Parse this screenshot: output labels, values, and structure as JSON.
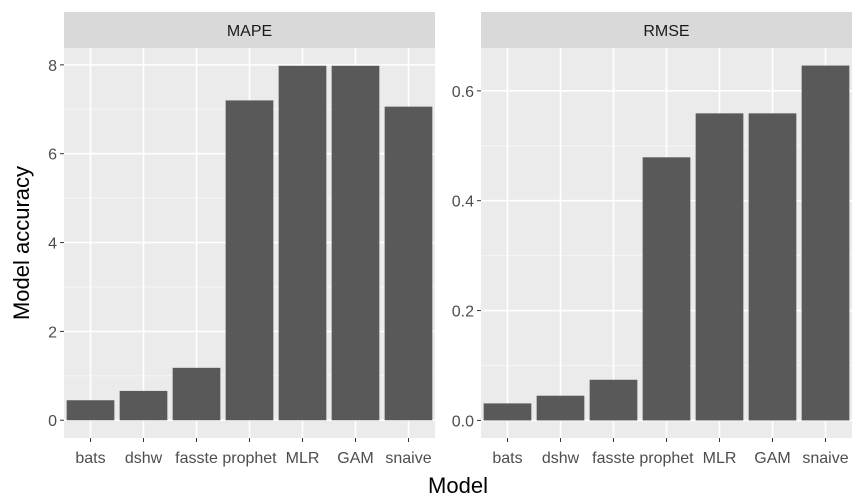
{
  "chart_data": {
    "type": "bar",
    "xlabel": "Model",
    "ylabel": "Model accuracy",
    "categories": [
      "bats",
      "dshw",
      "fasste",
      "prophet",
      "MLR",
      "GAM",
      "snaive"
    ],
    "grid": true,
    "legend": "none",
    "colors": {
      "bar": "#595959",
      "panel": "#ebebeb",
      "strip": "#d9d9d9",
      "grid_major": "#ffffff",
      "grid_minor": "#f5f5f5"
    },
    "panels": [
      {
        "title": "MAPE",
        "values": [
          0.45,
          0.66,
          1.18,
          7.2,
          7.98,
          7.98,
          7.06
        ],
        "ylim": [
          -0.4,
          8.38
        ],
        "yticks": [
          0,
          2,
          4,
          6,
          8
        ],
        "ytick_labels": [
          "0",
          "2",
          "4",
          "6",
          "8"
        ]
      },
      {
        "title": "RMSE",
        "values": [
          0.031,
          0.045,
          0.074,
          0.479,
          0.559,
          0.559,
          0.646
        ],
        "ylim": [
          -0.032,
          0.678
        ],
        "yticks": [
          0.0,
          0.2,
          0.4,
          0.6
        ],
        "ytick_labels": [
          "0.0",
          "0.2",
          "0.4",
          "0.6"
        ]
      }
    ]
  }
}
